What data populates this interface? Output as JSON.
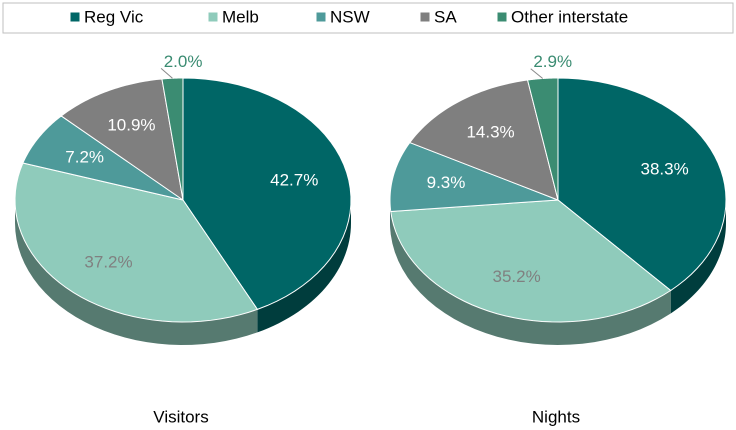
{
  "legend": {
    "categories": [
      "Reg Vic",
      "Melb",
      "NSW",
      "SA",
      "Other interstate"
    ],
    "colors": [
      "#006666",
      "#8fcbbb",
      "#4e9a9a",
      "#7f7f7f",
      "#3b8c72"
    ]
  },
  "chart_data": [
    {
      "type": "pie",
      "title": "Visitors",
      "values": [
        42.7,
        37.2,
        7.2,
        10.9,
        2.0
      ],
      "value_labels": [
        "42.7%",
        "37.2%",
        "7.2%",
        "10.9%",
        "2.0%"
      ]
    },
    {
      "type": "pie",
      "title": "Nights",
      "values": [
        38.3,
        35.2,
        9.3,
        14.3,
        2.9
      ],
      "value_labels": [
        "38.3%",
        "35.2%",
        "9.3%",
        "14.3%",
        "2.9%"
      ]
    }
  ]
}
